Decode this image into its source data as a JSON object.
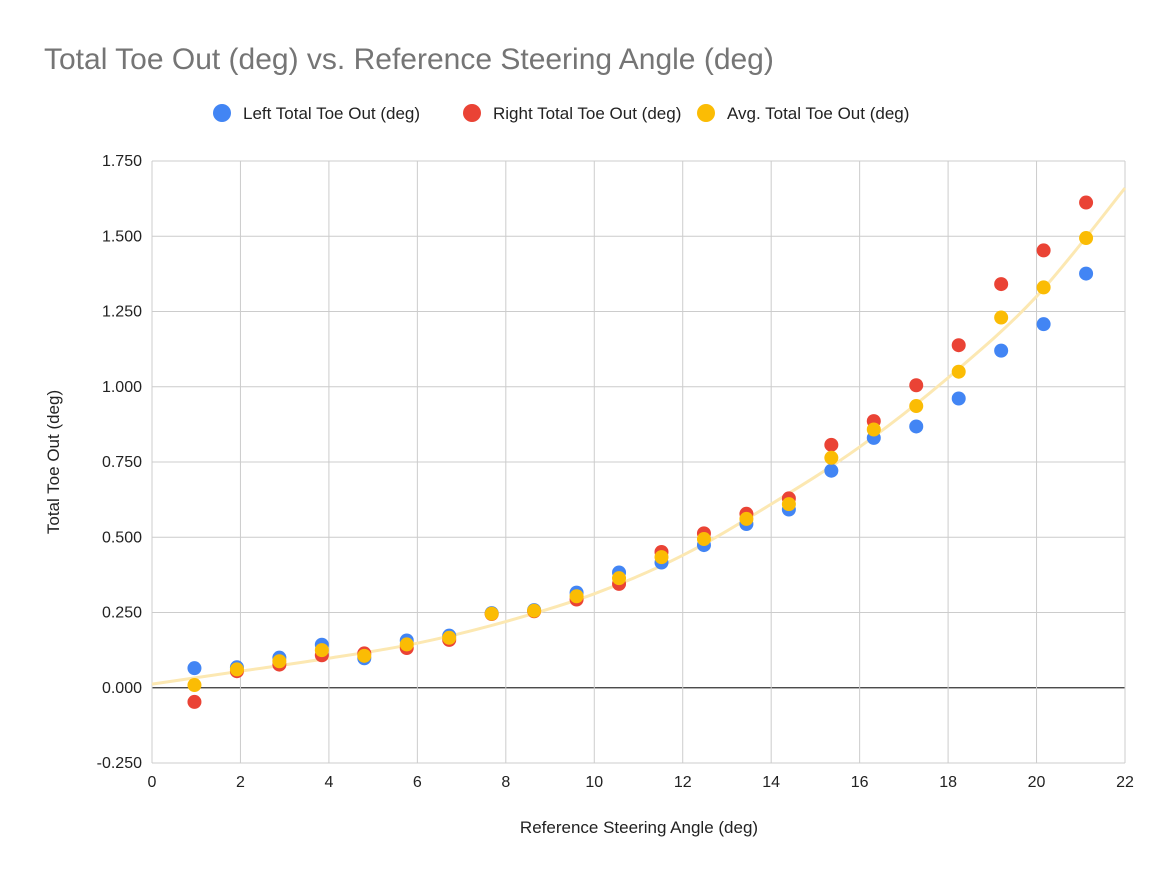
{
  "chart_data": {
    "type": "scatter",
    "title": "Total Toe Out (deg) vs. Reference Steering Angle (deg)",
    "xlabel": "Reference Steering Angle (deg)",
    "ylabel": "Total Toe Out (deg)",
    "xlim": [
      0,
      22
    ],
    "ylim": [
      -0.25,
      1.75
    ],
    "grid": true,
    "legend_position": "top",
    "x_ticks": [
      "0",
      "2",
      "4",
      "6",
      "8",
      "10",
      "12",
      "14",
      "16",
      "18",
      "20",
      "22"
    ],
    "y_ticks": [
      "-0.250",
      "0.000",
      "0.250",
      "0.500",
      "0.750",
      "1.000",
      "1.250",
      "1.500",
      "1.750"
    ],
    "x": [
      0.96,
      1.92,
      2.88,
      3.84,
      4.8,
      5.76,
      6.72,
      7.68,
      8.64,
      9.6,
      10.56,
      11.52,
      12.48,
      13.44,
      14.4,
      15.36,
      16.32,
      17.28,
      18.24,
      19.2,
      20.16,
      21.12
    ],
    "series": [
      {
        "name": "Left Total Toe Out (deg)",
        "color": "#4285f4",
        "values": [
          0.065,
          0.068,
          0.1,
          0.143,
          0.098,
          0.157,
          0.173,
          0.248,
          0.258,
          0.316,
          0.383,
          0.416,
          0.474,
          0.544,
          0.592,
          0.721,
          0.83,
          0.868,
          0.961,
          1.12,
          1.208,
          1.376
        ]
      },
      {
        "name": "Right Total Toe Out (deg)",
        "color": "#ea4335",
        "values": [
          -0.047,
          0.055,
          0.077,
          0.108,
          0.114,
          0.132,
          0.159,
          0.245,
          0.254,
          0.293,
          0.345,
          0.451,
          0.513,
          0.578,
          0.629,
          0.807,
          0.886,
          1.005,
          1.138,
          1.341,
          1.453,
          1.612
        ]
      },
      {
        "name": "Avg. Total Toe Out (deg)",
        "color": "#fbbc04",
        "values": [
          0.009,
          0.061,
          0.088,
          0.125,
          0.106,
          0.144,
          0.166,
          0.246,
          0.256,
          0.304,
          0.364,
          0.434,
          0.494,
          0.561,
          0.61,
          0.764,
          0.858,
          0.936,
          1.05,
          1.23,
          1.33,
          1.494
        ]
      }
    ],
    "trendline": {
      "series": "Avg. Total Toe Out (deg)",
      "color": "#fce8b2",
      "x": [
        0,
        2,
        4,
        6,
        8,
        10,
        12,
        14,
        16,
        18,
        20,
        22
      ],
      "y": [
        0.012,
        0.055,
        0.098,
        0.148,
        0.22,
        0.312,
        0.44,
        0.61,
        0.8,
        1.03,
        1.3,
        1.66
      ]
    }
  }
}
